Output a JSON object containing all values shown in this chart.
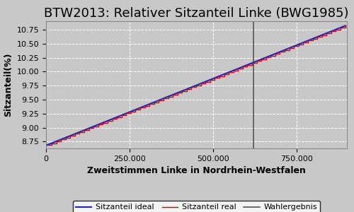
{
  "title": "BTW2013: Relativer Sitzanteil Linke (BWG1985)",
  "xlabel": "Zweitstimmen Linke in Nordrhein-Westfalen",
  "ylabel": "Sitzanteil(%)",
  "xlim": [
    0,
    900000
  ],
  "ylim": [
    8.63,
    10.9
  ],
  "wahlergebnis_x": 620000,
  "x_start": 3000,
  "x_end": 895000,
  "y_start": 8.69,
  "y_end": 10.82,
  "num_steps": 64,
  "color_real": "#cc0000",
  "color_ideal": "#2222cc",
  "color_wahlergebnis": "#555555",
  "bg_color": "#c8c8c8",
  "grid_color": "#ffffff",
  "title_fontsize": 13,
  "label_fontsize": 9,
  "legend_fontsize": 8,
  "tick_fontsize": 8
}
